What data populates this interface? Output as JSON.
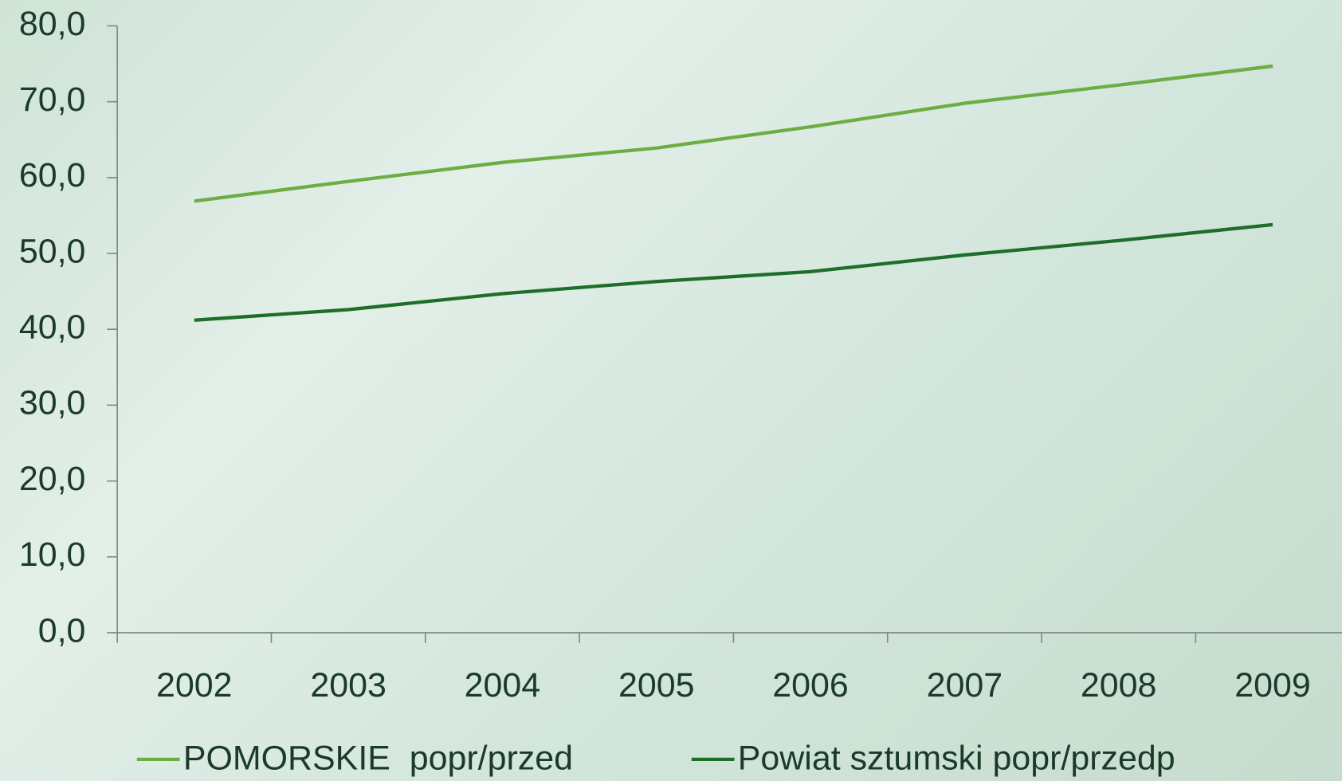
{
  "chart_data": {
    "type": "line",
    "categories": [
      "2002",
      "2003",
      "2004",
      "2005",
      "2006",
      "2007",
      "2008",
      "2009"
    ],
    "series": [
      {
        "name": "POMORSKIE  popr/przed",
        "color": "#6cae45",
        "values": [
          56.9,
          59.5,
          62.0,
          63.9,
          66.7,
          69.8,
          72.2,
          74.7
        ]
      },
      {
        "name": "Powiat sztumski popr/przedp",
        "color": "#1e6e2a",
        "values": [
          41.2,
          42.6,
          44.7,
          46.3,
          47.6,
          49.8,
          51.7,
          53.8
        ]
      }
    ],
    "ylim": [
      0,
      80
    ],
    "yticks": [
      {
        "value": 0,
        "label": "0,0"
      },
      {
        "value": 10,
        "label": "10,0"
      },
      {
        "value": 20,
        "label": "20,0"
      },
      {
        "value": 30,
        "label": "30,0"
      },
      {
        "value": 40,
        "label": "40,0"
      },
      {
        "value": 50,
        "label": "50,0"
      },
      {
        "value": 60,
        "label": "60,0"
      },
      {
        "value": 70,
        "label": "70,0"
      },
      {
        "value": 80,
        "label": "80,0"
      }
    ],
    "legend": "bottom"
  }
}
